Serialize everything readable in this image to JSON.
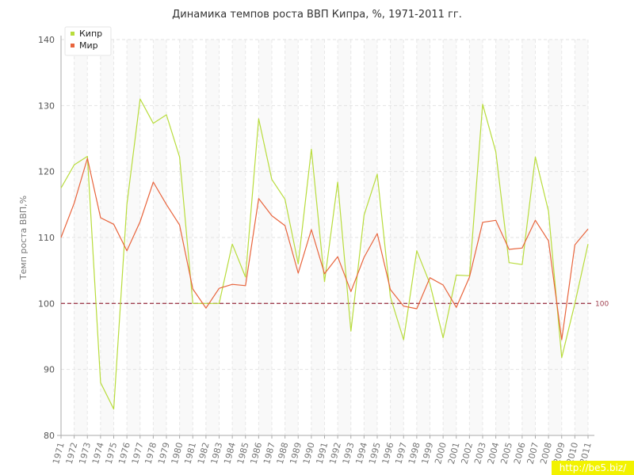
{
  "chart_data": {
    "type": "line",
    "title": "Динамика темпов роста ВВП Кипра, %, 1971-2011 гг.",
    "ylabel": "Темп роста ВВП,%",
    "xlabel": "",
    "ylim": [
      80,
      140
    ],
    "yticks": [
      "80",
      "90",
      "100",
      "110",
      "120",
      "130",
      "140"
    ],
    "grid": true,
    "legend_position": "top-left",
    "categories": [
      "1971",
      "1972",
      "1973",
      "1974",
      "1975",
      "1976",
      "1977",
      "1978",
      "1979",
      "1980",
      "1981",
      "1982",
      "1983",
      "1984",
      "1985",
      "1986",
      "1987",
      "1988",
      "1989",
      "1990",
      "1991",
      "1992",
      "1993",
      "1994",
      "1995",
      "1996",
      "1997",
      "1998",
      "1999",
      "2000",
      "2001",
      "2002",
      "2003",
      "2004",
      "2005",
      "2006",
      "2007",
      "2008",
      "2009",
      "2010",
      "2011"
    ],
    "series": [
      {
        "name": "Кипр",
        "color": "#b8dc3c",
        "values": [
          117.5,
          121.0,
          122.3,
          88.0,
          84.0,
          115.0,
          131.0,
          127.3,
          128.6,
          122.2,
          100.0,
          100.0,
          100.0,
          109.0,
          104.0,
          128.0,
          118.8,
          115.8,
          106.0,
          123.4,
          103.3,
          118.4,
          95.8,
          113.4,
          119.6,
          101.0,
          94.5,
          108.0,
          103.0,
          94.8,
          104.3,
          104.2,
          130.2,
          123.0,
          106.2,
          105.9,
          122.2,
          114.0,
          91.8,
          100.0,
          109.0
        ]
      },
      {
        "name": "Мир",
        "color": "#e8643c",
        "values": [
          110.0,
          115.2,
          122.0,
          113.0,
          112.0,
          108.0,
          112.4,
          118.4,
          115.0,
          111.9,
          102.2,
          99.3,
          102.3,
          102.9,
          102.7,
          115.9,
          113.3,
          111.8,
          104.6,
          111.2,
          104.5,
          107.1,
          101.8,
          107.0,
          110.6,
          102.1,
          99.6,
          99.2,
          103.9,
          102.8,
          99.4,
          104.0,
          112.3,
          112.6,
          108.2,
          108.4,
          112.6,
          109.5,
          94.5,
          108.9,
          111.3
        ]
      }
    ],
    "reference_line": {
      "value": 100,
      "label": "100",
      "color": "#a04050"
    }
  },
  "watermark": "http://be5.biz/"
}
